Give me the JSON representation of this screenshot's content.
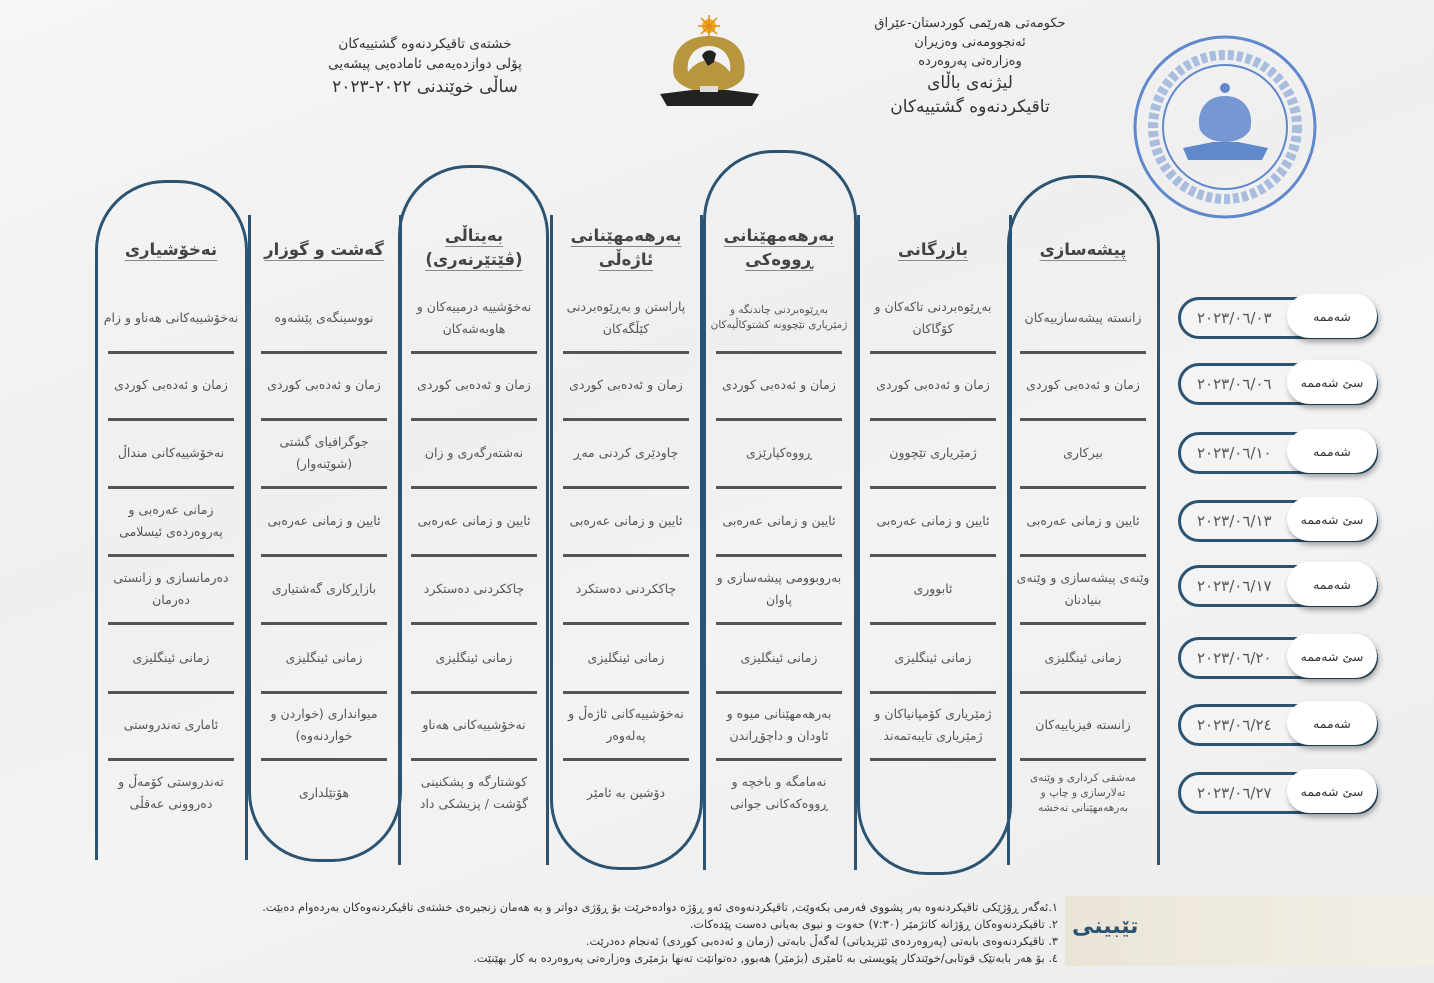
{
  "header_right": {
    "line1": "حکومەتی هەرێمی کوردستان-عێراق",
    "line2": "ئەنجوومەنی وەزیران",
    "line3": "وەزارەتی پەروەردە",
    "line4": "لیژنەی باڵای",
    "line5": "تاقیکردنەوە گشتییەکان"
  },
  "header_left": {
    "line1": "خشتەی تاقیکردنەوە گشتییەکان",
    "line2": "پۆلی دوازدەیەمی ئامادەیی پیشەیی",
    "line3": "ساڵی خوێندنی ٢٠٢٢-٢٠٢٣"
  },
  "logo": {
    "name": "kurdistan-region-emblem-icon",
    "color": "#b8963e"
  },
  "stamp": {
    "name": "ministry-stamp-icon",
    "color": "#3d6fc4"
  },
  "colors": {
    "border": "#2c5472",
    "text": "#555555",
    "notes_bg": "#ebe5d8"
  },
  "columns": [
    {
      "title": [
        "پیشەسازی"
      ],
      "subjects": [
        "زانستە پیشەسازییەکان",
        "زمان و ئەدەبی کوردی",
        "بیرکاری",
        "ئایین و زمانی عەرەبی",
        "وێنەی پیشەسازی و وێنەی بنیادنان",
        "زمانی ئینگلیزی",
        "زانستە فیزیاییەکان",
        "مەشقی کرداری و وێنەی تەلارسازی و چاپ و بەرهەمهێنانی نەخشە"
      ]
    },
    {
      "title": [
        "بازرگانی"
      ],
      "subjects": [
        "بەڕێوەبردنی تاکەکان و کۆگاکان",
        "زمان و ئەدەبی کوردی",
        "ژمێریاری تێچوون",
        "ئایین و زمانی عەرەبی",
        "ئابووری",
        "زمانی ئینگلیزی",
        "ژمێریاری کۆمپانیاکان و ژمێریاری تایبەتمەند",
        ""
      ]
    },
    {
      "title": [
        "بەرهەمهێنانی",
        "ڕووەکی"
      ],
      "subjects": [
        "بەڕێوەبردنی چاندنگە و ژمێریاری تێچوونە کشتوکاڵیەکان",
        "زمان و ئەدەبی کوردی",
        "ڕووەکپارێزی",
        "ئایین و زمانی عەرەبی",
        "بەروبوومی پیشەسازی و پاوان",
        "زمانی ئینگلیزی",
        "بەرهەمهێنانی میوە و ئاودان و داچۆڕاندن",
        "نەمامگە و باخچە و ڕووەکەکانی جوانی"
      ]
    },
    {
      "title": [
        "بەرهەمهێنانی",
        "ئاژەڵی"
      ],
      "subjects": [
        "پاراستن و بەڕێوەبردنی کێڵگەکان",
        "زمان و ئەدەبی کوردی",
        "چاودێری کردنی مەڕ",
        "ئایین و زمانی عەرەبی",
        "چاککردنی دەستکرد",
        "زمانی ئینگلیزی",
        "نەخۆشییەکانی ئاژەڵ و پەلەوەر",
        "دۆشین بە ئامێر"
      ]
    },
    {
      "title": [
        "بەیتاڵی",
        "(ڤێتێرنەری)"
      ],
      "subjects": [
        "نەخۆشییە درمییەکان و هاوبەشەکان",
        "زمان و ئەدەبی کوردی",
        "نەشتەرگەری و زان",
        "ئایین و زمانی عەرەبی",
        "چاککردنی دەستکرد",
        "زمانی ئینگلیزی",
        "نەخۆشییەکانی هەناو",
        "کوشتارگە و پشکنینی گۆشت / پزیشکی داد"
      ]
    },
    {
      "title": [
        "گەشت و گوزار"
      ],
      "subjects": [
        "نووسینگەی پێشەوە",
        "زمان و ئەدەبی کوردی",
        "جوگرافیای گشتی (شوێنەوار)",
        "ئایین و زمانی عەرەبی",
        "بازاڕکاری گەشتیاری",
        "زمانی ئینگلیزی",
        "میوانداری (خواردن و خواردنەوە)",
        "هۆتێلداری"
      ]
    },
    {
      "title": [
        "نەخۆشیاری"
      ],
      "subjects": [
        "نەخۆشییەکانی هەناو و زام",
        "زمان و ئەدەبی کوردی",
        "نەخۆشییەکانی منداڵ",
        "زمانی عەرەبی و پەروەردەی ئیسلامی",
        "دەرمانسازی و زانستی دەرمان",
        "زمانی ئینگلیزی",
        "ئاماری تەندروستی",
        "تەندروستی کۆمەڵ و دەروونی عەقڵی"
      ]
    }
  ],
  "dates": [
    {
      "day": "شەممە",
      "date": "٢٠٢٣/٠٦/٠٣"
    },
    {
      "day": "سێ شەممە",
      "date": "٢٠٢٣/٠٦/٠٦"
    },
    {
      "day": "شەممە",
      "date": "٢٠٢٣/٠٦/١٠"
    },
    {
      "day": "سێ شەممە",
      "date": "٢٠٢٣/٠٦/١٣"
    },
    {
      "day": "شەممە",
      "date": "٢٠٢٣/٠٦/١٧"
    },
    {
      "day": "سێ شەممە",
      "date": "٢٠٢٣/٠٦/٢٠"
    },
    {
      "day": "شەممە",
      "date": "٢٠٢٣/٠٦/٢٤"
    },
    {
      "day": "سێ شەممە",
      "date": "٢٠٢٣/٠٦/٢٧"
    }
  ],
  "notes": {
    "title": "تێبینی",
    "items": [
      "١.ئەگەر ڕۆژێکی تاقیکردنەوە بەر پشووی فەرمی بکەوێت, تاقیکردنەوەی ئەو ڕۆژە دوادەخرێت بۆ ڕۆژی دواتر و بە هەمان زنجیرەی خشتەی تاقیکردنەوەکان بەردەوام دەبێت.",
      "٢. تاقیکردنەوەکان ڕۆژانە کاتژمێر (٧:٣٠) حەوت و نیوی بەیانی دەست پێدەکات.",
      "٣. تاقیکردنەوەی بابەتی (پەروەردەی ئێزیدیاتی) لەگەڵ بابەتی (زمان و ئەدەبی کوردی) ئەنجام دەدرێت.",
      "٤. بۆ هەر بابەتێک قوتابی/خوێندکار پێویستی بە ئامێری (بژمێر) هەبوو, دەتوانێت تەنها بژمێری وەزارەتی پەروەردە بە کار بهێنێت."
    ]
  }
}
